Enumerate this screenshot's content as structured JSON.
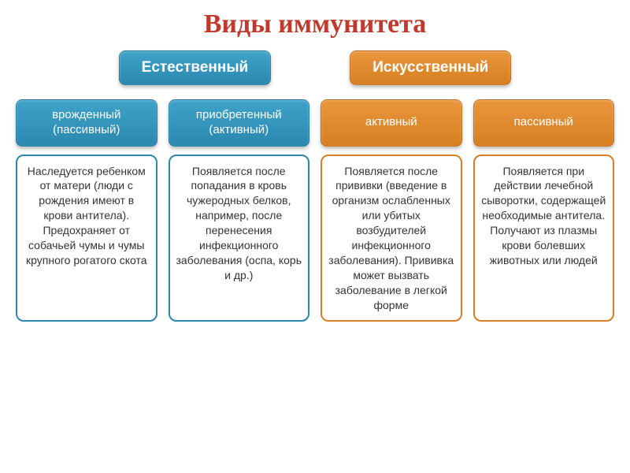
{
  "title": {
    "text": "Виды иммунитета",
    "color": "#c0392b",
    "fontsize": 34
  },
  "categories": [
    {
      "label": "Естественный",
      "bg": "linear-gradient(to bottom, #3fa3c9, #2b88b0)",
      "fontsize": 19
    },
    {
      "label": "Искусственный",
      "bg": "linear-gradient(to bottom, #e9963c, #d77f22)",
      "fontsize": 19
    }
  ],
  "subtypes": [
    {
      "label": "врожденный (пассивный)",
      "bg": "linear-gradient(to bottom, #3fa3c9, #2b88b0)",
      "fontsize": 15
    },
    {
      "label": "приобретенный (активный)",
      "bg": "linear-gradient(to bottom, #3fa3c9, #2b88b0)",
      "fontsize": 15
    },
    {
      "label": "активный",
      "bg": "linear-gradient(to bottom, #e9963c, #d77f22)",
      "fontsize": 15
    },
    {
      "label": "пассивный",
      "bg": "linear-gradient(to bottom, #e9963c, #d77f22)",
      "fontsize": 15
    }
  ],
  "descriptions": [
    {
      "text": "Наследуется ребенком от матери (люди с рождения имеют в крови антитела). Предохраняет от собачьей чумы и чумы крупного рогатого скота",
      "border": "#2b88b0",
      "fontsize": 14
    },
    {
      "text": "Появляется после попадания в кровь чужеродных белков, например, после перенесения инфекционного заболевания (оспа, корь и др.)",
      "border": "#2b88b0",
      "fontsize": 14
    },
    {
      "text": "Появляется после прививки (введение в организм ослабленных или убитых возбудителей инфекционного заболевания). Прививка может вызвать заболевание в легкой форме",
      "border": "#d77f22",
      "fontsize": 14
    },
    {
      "text": "Появляется при действии лечебной сыворотки, содержащей необходимые антитела. Получают из плазмы крови болевших животных или людей",
      "border": "#d77f22",
      "fontsize": 14
    }
  ]
}
